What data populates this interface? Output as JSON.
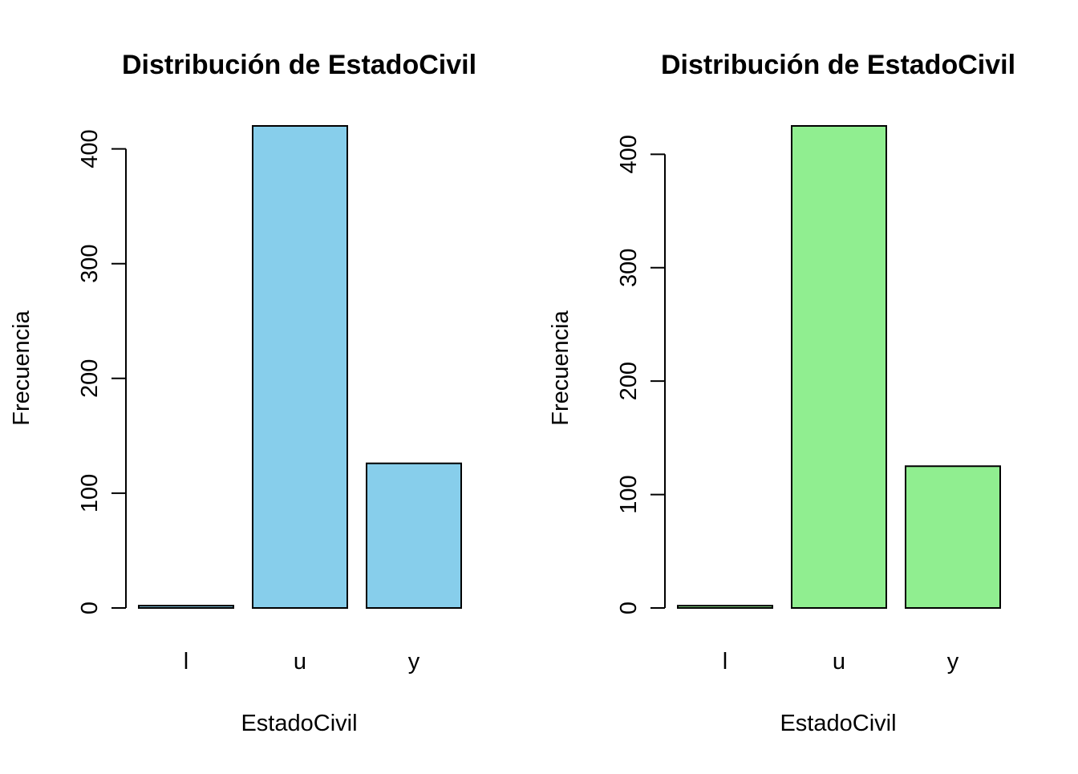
{
  "chart_data": [
    {
      "type": "bar",
      "title": "Distribución de EstadoCivil",
      "xlabel": "EstadoCivil",
      "ylabel": "Frecuencia",
      "categories": [
        "l",
        "u",
        "y"
      ],
      "values": [
        2,
        420,
        126
      ],
      "ylim": [
        0,
        420
      ],
      "yticks": [
        "0",
        "100",
        "200",
        "300",
        "400"
      ],
      "bar_color": "#87CEEB",
      "grid": false,
      "legend": "none"
    },
    {
      "type": "bar",
      "title": "Distribución de EstadoCivil",
      "xlabel": "EstadoCivil",
      "ylabel": "Frecuencia",
      "categories": [
        "l",
        "u",
        "y"
      ],
      "values": [
        2,
        425,
        125
      ],
      "ylim": [
        0,
        425
      ],
      "yticks": [
        "0",
        "100",
        "200",
        "300",
        "400"
      ],
      "bar_color": "#90EE90",
      "grid": false,
      "legend": "none"
    }
  ]
}
